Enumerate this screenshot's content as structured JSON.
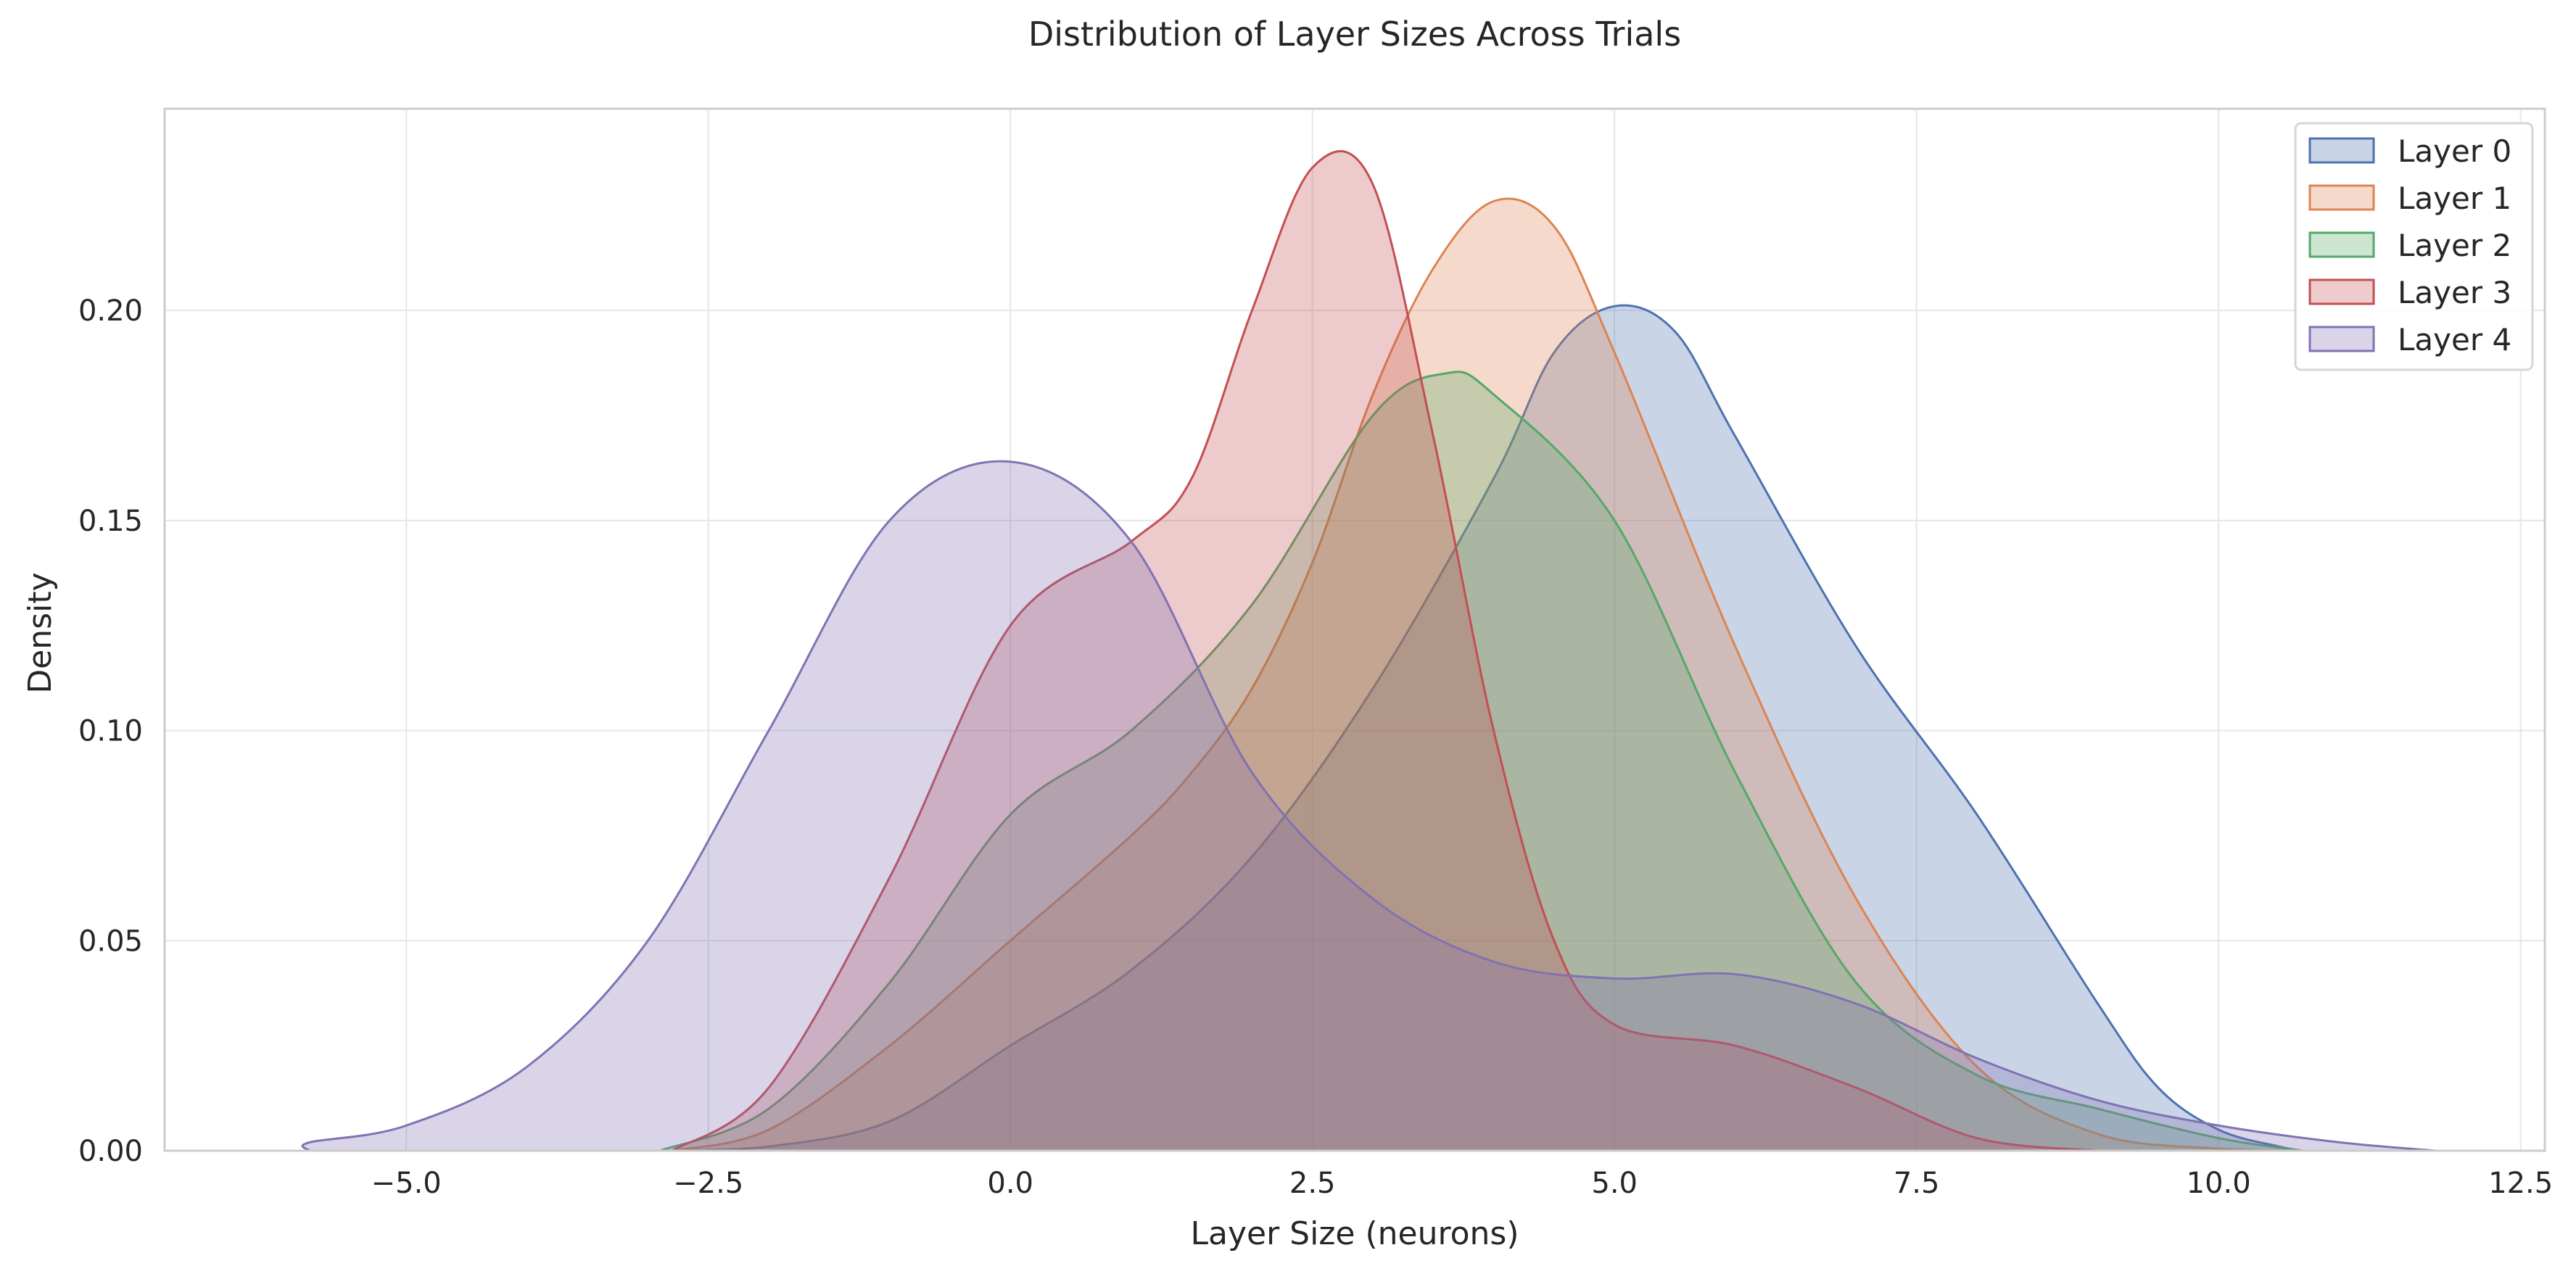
{
  "chart_data": {
    "type": "area",
    "title": "Distribution of Layer Sizes Across Trials",
    "xlabel": "Layer Size (neurons)",
    "ylabel": "Density",
    "xlim": [
      -7.0,
      12.7
    ],
    "ylim": [
      0,
      0.248
    ],
    "xticks": [
      -5.0,
      -2.5,
      0.0,
      2.5,
      5.0,
      7.5,
      10.0,
      12.5
    ],
    "xtick_labels": [
      "−5.0",
      "−2.5",
      "0.0",
      "2.5",
      "5.0",
      "7.5",
      "10.0",
      "12.5"
    ],
    "yticks": [
      0.0,
      0.05,
      0.1,
      0.15,
      0.2
    ],
    "ytick_labels": [
      "0.00",
      "0.05",
      "0.10",
      "0.15",
      "0.20"
    ],
    "grid": true,
    "legend_position": "top-right",
    "series": [
      {
        "name": "Layer 0",
        "color": "#4c72b0",
        "points": [
          [
            -2.8,
            0.0
          ],
          [
            -2.0,
            0.001
          ],
          [
            -1.0,
            0.007
          ],
          [
            0.0,
            0.025
          ],
          [
            1.0,
            0.043
          ],
          [
            2.0,
            0.07
          ],
          [
            3.0,
            0.11
          ],
          [
            4.0,
            0.16
          ],
          [
            4.5,
            0.19
          ],
          [
            5.0,
            0.201
          ],
          [
            5.5,
            0.195
          ],
          [
            6.0,
            0.17
          ],
          [
            7.0,
            0.12
          ],
          [
            8.0,
            0.08
          ],
          [
            9.0,
            0.035
          ],
          [
            9.5,
            0.015
          ],
          [
            10.0,
            0.005
          ],
          [
            10.5,
            0.001
          ],
          [
            10.7,
            0.0
          ]
        ]
      },
      {
        "name": "Layer 1",
        "color": "#dd8452",
        "points": [
          [
            -2.8,
            0.0
          ],
          [
            -2.0,
            0.005
          ],
          [
            -1.0,
            0.025
          ],
          [
            0.0,
            0.05
          ],
          [
            1.0,
            0.075
          ],
          [
            1.5,
            0.09
          ],
          [
            2.0,
            0.11
          ],
          [
            2.5,
            0.14
          ],
          [
            3.0,
            0.18
          ],
          [
            3.5,
            0.21
          ],
          [
            4.0,
            0.226
          ],
          [
            4.5,
            0.22
          ],
          [
            5.0,
            0.19
          ],
          [
            6.0,
            0.12
          ],
          [
            7.0,
            0.06
          ],
          [
            8.0,
            0.02
          ],
          [
            9.0,
            0.004
          ],
          [
            10.0,
            0.0005
          ],
          [
            10.7,
            0.0
          ]
        ]
      },
      {
        "name": "Layer 2",
        "color": "#55a868",
        "points": [
          [
            -2.9,
            0.0
          ],
          [
            -2.0,
            0.01
          ],
          [
            -1.0,
            0.04
          ],
          [
            0.0,
            0.08
          ],
          [
            1.0,
            0.1
          ],
          [
            2.0,
            0.13
          ],
          [
            3.0,
            0.175
          ],
          [
            3.6,
            0.185
          ],
          [
            4.0,
            0.18
          ],
          [
            5.0,
            0.15
          ],
          [
            6.0,
            0.09
          ],
          [
            7.0,
            0.04
          ],
          [
            8.0,
            0.018
          ],
          [
            9.0,
            0.01
          ],
          [
            10.0,
            0.003
          ],
          [
            10.7,
            0.0
          ]
        ]
      },
      {
        "name": "Layer 3",
        "color": "#c44e52",
        "points": [
          [
            -2.8,
            0.0
          ],
          [
            -2.0,
            0.015
          ],
          [
            -1.0,
            0.065
          ],
          [
            0.0,
            0.125
          ],
          [
            1.0,
            0.145
          ],
          [
            1.5,
            0.16
          ],
          [
            2.0,
            0.2
          ],
          [
            2.5,
            0.234
          ],
          [
            3.0,
            0.23
          ],
          [
            3.5,
            0.17
          ],
          [
            4.0,
            0.1
          ],
          [
            4.5,
            0.05
          ],
          [
            5.0,
            0.03
          ],
          [
            6.0,
            0.025
          ],
          [
            7.0,
            0.015
          ],
          [
            8.0,
            0.003
          ],
          [
            9.0,
            0.0
          ]
        ]
      },
      {
        "name": "Layer 4",
        "color": "#8172b3",
        "points": [
          [
            -5.8,
            0.0
          ],
          [
            -5.8,
            0.002
          ],
          [
            -5.0,
            0.006
          ],
          [
            -4.0,
            0.02
          ],
          [
            -3.0,
            0.05
          ],
          [
            -2.0,
            0.1
          ],
          [
            -1.0,
            0.15
          ],
          [
            0.0,
            0.164
          ],
          [
            1.0,
            0.145
          ],
          [
            2.0,
            0.09
          ],
          [
            3.0,
            0.06
          ],
          [
            4.0,
            0.045
          ],
          [
            5.0,
            0.041
          ],
          [
            6.0,
            0.042
          ],
          [
            7.0,
            0.035
          ],
          [
            8.0,
            0.022
          ],
          [
            9.0,
            0.012
          ],
          [
            10.0,
            0.006
          ],
          [
            11.0,
            0.002
          ],
          [
            11.8,
            0.0
          ]
        ]
      }
    ]
  }
}
